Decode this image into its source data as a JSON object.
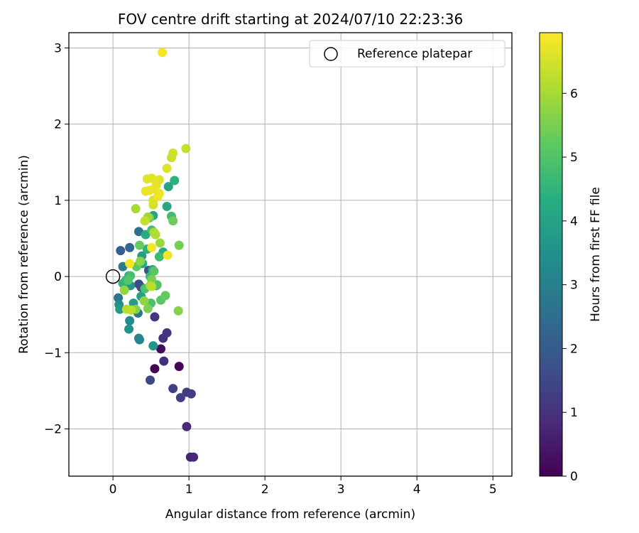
{
  "chart_data": {
    "type": "scatter",
    "title": "FOV centre drift starting at 2024/07/10 22:23:36",
    "xlabel": "Angular distance from reference (arcmin)",
    "ylabel": "Rotation from reference (arcmin)",
    "xlim": [
      -0.58,
      5.25
    ],
    "ylim": [
      -2.62,
      3.2
    ],
    "xticks": [
      0,
      1,
      2,
      3,
      4,
      5
    ],
    "yticks": [
      -2,
      -1,
      0,
      1,
      2,
      3
    ],
    "xtick_labels": [
      "0",
      "1",
      "2",
      "3",
      "4",
      "5"
    ],
    "ytick_labels": [
      "−2",
      "−1",
      "0",
      "1",
      "2",
      "3"
    ],
    "grid": true,
    "legend": {
      "placement": "top-right",
      "entries": [
        {
          "label": "Reference platepar",
          "marker": "open-circle"
        }
      ]
    },
    "reference_point": {
      "x": 0,
      "y": 0
    },
    "colorbar": {
      "label": "Hours from first FF file",
      "colormap": "viridis",
      "range": [
        0,
        6.95
      ],
      "ticks": [
        0,
        1,
        2,
        3,
        4,
        5,
        6
      ],
      "tick_labels": [
        "0",
        "1",
        "2",
        "3",
        "4",
        "5",
        "6"
      ]
    },
    "points": [
      {
        "x": 0.55,
        "y": -1.21,
        "c": 0.05
      },
      {
        "x": 0.87,
        "y": -1.18,
        "c": 0.1
      },
      {
        "x": 0.63,
        "y": -0.95,
        "c": 0.2
      },
      {
        "x": 1.02,
        "y": -2.37,
        "c": 0.7
      },
      {
        "x": 1.06,
        "y": -2.37,
        "c": 0.75
      },
      {
        "x": 0.97,
        "y": -1.97,
        "c": 0.8
      },
      {
        "x": 0.67,
        "y": -1.11,
        "c": 0.9
      },
      {
        "x": 0.66,
        "y": -0.81,
        "c": 0.95
      },
      {
        "x": 0.71,
        "y": -0.74,
        "c": 1.0
      },
      {
        "x": 0.55,
        "y": -0.53,
        "c": 1.1
      },
      {
        "x": 0.97,
        "y": -1.52,
        "c": 1.2
      },
      {
        "x": 1.03,
        "y": -1.54,
        "c": 1.25
      },
      {
        "x": 0.89,
        "y": -1.59,
        "c": 1.3
      },
      {
        "x": 0.79,
        "y": -1.47,
        "c": 1.35
      },
      {
        "x": 0.49,
        "y": -1.36,
        "c": 1.45
      },
      {
        "x": 0.34,
        "y": -0.1,
        "c": 1.6
      },
      {
        "x": 0.37,
        "y": -0.14,
        "c": 1.7
      },
      {
        "x": 0.47,
        "y": 0.08,
        "c": 1.8
      },
      {
        "x": 0.1,
        "y": 0.34,
        "c": 2.1
      },
      {
        "x": 0.22,
        "y": 0.38,
        "c": 2.3
      },
      {
        "x": 0.34,
        "y": 0.59,
        "c": 2.5
      },
      {
        "x": 0.07,
        "y": -0.28,
        "c": 2.7
      },
      {
        "x": 0.33,
        "y": -0.48,
        "c": 2.75
      },
      {
        "x": 0.13,
        "y": 0.13,
        "c": 2.9
      },
      {
        "x": 0.34,
        "y": -0.81,
        "c": 3.1
      },
      {
        "x": 0.35,
        "y": -0.83,
        "c": 3.15
      },
      {
        "x": 0.22,
        "y": -0.58,
        "c": 3.25
      },
      {
        "x": 0.08,
        "y": -0.37,
        "c": 3.35
      },
      {
        "x": 0.21,
        "y": -0.69,
        "c": 3.5
      },
      {
        "x": 0.53,
        "y": -0.91,
        "c": 3.6
      },
      {
        "x": 0.23,
        "y": -0.12,
        "c": 3.65
      },
      {
        "x": 0.09,
        "y": -0.43,
        "c": 3.7
      },
      {
        "x": 0.27,
        "y": -0.35,
        "c": 3.8
      },
      {
        "x": 0.38,
        "y": 0.27,
        "c": 3.85
      },
      {
        "x": 0.37,
        "y": -0.26,
        "c": 3.9
      },
      {
        "x": 0.52,
        "y": 0.09,
        "c": 4.0
      },
      {
        "x": 0.73,
        "y": 1.18,
        "c": 4.05
      },
      {
        "x": 0.53,
        "y": 0.8,
        "c": 4.1
      },
      {
        "x": 0.71,
        "y": 0.92,
        "c": 4.15
      },
      {
        "x": 0.43,
        "y": 0.55,
        "c": 4.2
      },
      {
        "x": 0.66,
        "y": 0.32,
        "c": 4.25
      },
      {
        "x": 0.39,
        "y": 0.17,
        "c": 4.3
      },
      {
        "x": 0.21,
        "y": 0.01,
        "c": 4.35
      },
      {
        "x": 0.81,
        "y": 1.26,
        "c": 4.4
      },
      {
        "x": 0.45,
        "y": 0.36,
        "c": 4.45
      },
      {
        "x": 0.57,
        "y": -0.12,
        "c": 4.5
      },
      {
        "x": 0.13,
        "y": -0.09,
        "c": 4.55
      },
      {
        "x": 0.17,
        "y": -0.05,
        "c": 4.6
      },
      {
        "x": 0.49,
        "y": 0.0,
        "c": 4.65
      },
      {
        "x": 0.61,
        "y": 0.26,
        "c": 4.7
      },
      {
        "x": 0.77,
        "y": 0.79,
        "c": 4.75
      },
      {
        "x": 0.51,
        "y": 0.61,
        "c": 4.8
      },
      {
        "x": 0.23,
        "y": 0.01,
        "c": 4.85
      },
      {
        "x": 0.5,
        "y": -0.35,
        "c": 4.9
      },
      {
        "x": 0.42,
        "y": -0.16,
        "c": 4.95
      },
      {
        "x": 0.58,
        "y": -0.11,
        "c": 5.0
      },
      {
        "x": 0.2,
        "y": -0.05,
        "c": 5.05
      },
      {
        "x": 0.54,
        "y": 0.07,
        "c": 5.1
      },
      {
        "x": 0.63,
        "y": -0.31,
        "c": 5.15
      },
      {
        "x": 0.31,
        "y": 0.13,
        "c": 5.2
      },
      {
        "x": 0.69,
        "y": -0.25,
        "c": 5.25
      },
      {
        "x": 0.35,
        "y": 0.41,
        "c": 5.3
      },
      {
        "x": 0.48,
        "y": 0.77,
        "c": 5.35
      },
      {
        "x": 0.79,
        "y": 0.73,
        "c": 5.4
      },
      {
        "x": 0.87,
        "y": 0.41,
        "c": 5.45
      },
      {
        "x": 0.51,
        "y": -0.04,
        "c": 5.5
      },
      {
        "x": 0.46,
        "y": -0.42,
        "c": 5.55
      },
      {
        "x": 0.3,
        "y": -0.43,
        "c": 5.6
      },
      {
        "x": 0.86,
        "y": -0.45,
        "c": 5.65
      },
      {
        "x": 0.36,
        "y": 0.2,
        "c": 5.7
      },
      {
        "x": 0.41,
        "y": -0.32,
        "c": 5.75
      },
      {
        "x": 0.15,
        "y": -0.18,
        "c": 5.8
      },
      {
        "x": 0.62,
        "y": 0.44,
        "c": 5.85
      },
      {
        "x": 0.46,
        "y": 0.78,
        "c": 5.9
      },
      {
        "x": 0.49,
        "y": -0.12,
        "c": 5.95
      },
      {
        "x": 0.3,
        "y": 0.89,
        "c": 6.0
      },
      {
        "x": 0.54,
        "y": 0.58,
        "c": 6.05
      },
      {
        "x": 0.56,
        "y": 0.55,
        "c": 6.1
      },
      {
        "x": 0.18,
        "y": -0.43,
        "c": 6.15
      },
      {
        "x": 0.24,
        "y": -0.44,
        "c": 6.2
      },
      {
        "x": 0.51,
        "y": -0.13,
        "c": 6.25
      },
      {
        "x": 0.42,
        "y": 0.73,
        "c": 6.3
      },
      {
        "x": 0.96,
        "y": 1.68,
        "c": 6.35
      },
      {
        "x": 0.77,
        "y": 1.56,
        "c": 6.4
      },
      {
        "x": 0.79,
        "y": 1.62,
        "c": 6.45
      },
      {
        "x": 0.53,
        "y": 0.94,
        "c": 6.5
      },
      {
        "x": 0.53,
        "y": 1.0,
        "c": 6.55
      },
      {
        "x": 0.71,
        "y": 1.42,
        "c": 6.6
      },
      {
        "x": 0.61,
        "y": 1.27,
        "c": 6.62
      },
      {
        "x": 0.51,
        "y": 1.29,
        "c": 6.64
      },
      {
        "x": 0.45,
        "y": 1.28,
        "c": 6.66
      },
      {
        "x": 0.57,
        "y": 1.2,
        "c": 6.7
      },
      {
        "x": 0.54,
        "y": 1.15,
        "c": 6.72
      },
      {
        "x": 0.48,
        "y": 1.13,
        "c": 6.74
      },
      {
        "x": 0.43,
        "y": 1.12,
        "c": 6.76
      },
      {
        "x": 0.59,
        "y": 1.05,
        "c": 6.78
      },
      {
        "x": 0.61,
        "y": 1.09,
        "c": 6.8
      },
      {
        "x": 0.72,
        "y": 0.28,
        "c": 6.82
      },
      {
        "x": 0.51,
        "y": 0.38,
        "c": 6.85
      },
      {
        "x": 0.22,
        "y": 0.17,
        "c": 6.88
      },
      {
        "x": 0.65,
        "y": 2.94,
        "c": 6.9
      }
    ]
  }
}
